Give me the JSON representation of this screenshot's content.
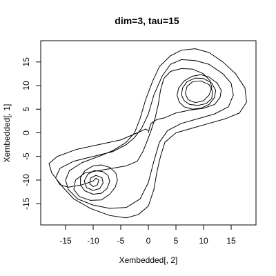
{
  "chart_data": {
    "type": "line",
    "title": "dim=3, tau=15",
    "xlabel": "Xembedded[, 2]",
    "ylabel": "Xembedded[, 1]",
    "xlim": [
      -19.5,
      19.5
    ],
    "ylim": [
      -19.5,
      19.5
    ],
    "x_ticks": [
      -15,
      -10,
      -5,
      0,
      5,
      10,
      15
    ],
    "y_ticks": [
      -15,
      -10,
      -5,
      0,
      5,
      10,
      15
    ],
    "x_tick_labels": [
      "-15",
      "-10",
      "-5",
      "0",
      "5",
      "10",
      "15"
    ],
    "y_tick_labels": [
      "-15",
      "-10",
      "-5",
      "0",
      "5",
      "10",
      "15"
    ],
    "grid": false,
    "line_color": "#000000",
    "series": [
      {
        "points": [
          [
            0.0,
            0.0
          ],
          [
            0.2,
            1.0
          ],
          [
            0.5,
            2.0
          ],
          [
            1.5,
            2.8
          ],
          [
            3.0,
            3.2
          ],
          [
            5.0,
            4.2
          ],
          [
            7.5,
            4.8
          ],
          [
            10.0,
            5.2
          ],
          [
            12.0,
            6.0
          ],
          [
            13.0,
            7.5
          ],
          [
            13.2,
            9.0
          ],
          [
            12.5,
            10.5
          ],
          [
            11.0,
            11.8
          ],
          [
            9.5,
            12.3
          ],
          [
            8.0,
            12.0
          ],
          [
            6.5,
            11.0
          ],
          [
            5.5,
            9.5
          ],
          [
            5.2,
            8.0
          ],
          [
            5.6,
            6.5
          ],
          [
            6.5,
            5.5
          ],
          [
            8.0,
            5.0
          ],
          [
            9.5,
            5.2
          ],
          [
            11.0,
            6.0
          ],
          [
            12.0,
            7.5
          ],
          [
            12.2,
            9.0
          ],
          [
            11.5,
            10.5
          ],
          [
            10.0,
            11.5
          ],
          [
            8.5,
            11.6
          ],
          [
            7.0,
            10.8
          ],
          [
            6.2,
            9.5
          ],
          [
            6.0,
            8.0
          ],
          [
            6.5,
            6.8
          ],
          [
            7.5,
            6.0
          ],
          [
            9.0,
            5.8
          ],
          [
            10.5,
            6.2
          ],
          [
            11.5,
            7.3
          ],
          [
            11.6,
            8.8
          ],
          [
            11.0,
            10.2
          ],
          [
            9.5,
            11.0
          ],
          [
            8.0,
            10.8
          ],
          [
            7.0,
            9.8
          ],
          [
            6.7,
            8.3
          ],
          [
            7.2,
            7.0
          ],
          [
            8.5,
            6.4
          ],
          [
            10.0,
            6.8
          ],
          [
            11.0,
            8.0
          ],
          [
            11.5,
            9.5
          ],
          [
            11.2,
            11.0
          ],
          [
            10.0,
            12.5
          ],
          [
            8.0,
            13.5
          ],
          [
            6.0,
            13.6
          ],
          [
            4.0,
            13.0
          ],
          [
            2.8,
            11.5
          ],
          [
            2.2,
            9.0
          ],
          [
            1.8,
            6.0
          ],
          [
            1.2,
            3.0
          ],
          [
            0.5,
            0.5
          ],
          [
            -0.3,
            -2.0
          ],
          [
            -1.0,
            -4.0
          ],
          [
            -2.0,
            -6.0
          ],
          [
            -4.0,
            -7.0
          ],
          [
            -6.5,
            -7.5
          ],
          [
            -9.0,
            -8.0
          ],
          [
            -11.5,
            -8.5
          ],
          [
            -13.2,
            -10.0
          ],
          [
            -13.5,
            -12.0
          ],
          [
            -12.5,
            -13.5
          ],
          [
            -10.5,
            -14.3
          ],
          [
            -8.5,
            -14.2
          ],
          [
            -7.0,
            -13.0
          ],
          [
            -6.0,
            -11.5
          ],
          [
            -5.6,
            -10.0
          ],
          [
            -5.9,
            -8.5
          ],
          [
            -7.0,
            -7.3
          ],
          [
            -8.5,
            -6.8
          ],
          [
            -10.0,
            -7.0
          ],
          [
            -11.5,
            -8.0
          ],
          [
            -12.3,
            -9.5
          ],
          [
            -12.3,
            -11.0
          ],
          [
            -11.5,
            -12.3
          ],
          [
            -10.0,
            -13.0
          ],
          [
            -8.5,
            -12.8
          ],
          [
            -7.5,
            -11.8
          ],
          [
            -7.0,
            -10.3
          ],
          [
            -7.3,
            -9.0
          ],
          [
            -8.3,
            -8.2
          ],
          [
            -9.8,
            -8.0
          ],
          [
            -11.0,
            -8.8
          ],
          [
            -11.6,
            -10.2
          ],
          [
            -11.2,
            -11.6
          ],
          [
            -10.0,
            -12.2
          ],
          [
            -8.8,
            -11.8
          ],
          [
            -8.2,
            -10.6
          ],
          [
            -8.4,
            -9.5
          ],
          [
            -9.5,
            -9.0
          ],
          [
            -10.5,
            -9.6
          ],
          [
            -10.6,
            -10.8
          ],
          [
            -10.0,
            -11.4
          ],
          [
            -9.2,
            -11.0
          ],
          [
            -9.0,
            -10.0
          ],
          [
            -9.5,
            -9.6
          ],
          [
            -10.0,
            -10.2
          ],
          [
            -12.0,
            -11.0
          ],
          [
            -14.5,
            -11.5
          ],
          [
            -16.0,
            -11.0
          ],
          [
            -16.8,
            -9.5
          ],
          [
            -16.0,
            -7.5
          ],
          [
            -13.5,
            -6.0
          ],
          [
            -10.0,
            -5.0
          ],
          [
            -6.5,
            -4.0
          ],
          [
            -4.0,
            -2.5
          ],
          [
            -2.5,
            -1.0
          ],
          [
            -1.2,
            1.0
          ],
          [
            0.0,
            4.0
          ],
          [
            1.0,
            8.0
          ],
          [
            2.5,
            12.0
          ],
          [
            4.0,
            14.5
          ],
          [
            6.0,
            15.5
          ],
          [
            8.5,
            15.3
          ],
          [
            11.0,
            14.5
          ],
          [
            13.5,
            12.5
          ],
          [
            15.0,
            10.5
          ],
          [
            15.4,
            8.0
          ],
          [
            14.5,
            5.5
          ],
          [
            12.0,
            4.0
          ],
          [
            9.0,
            3.0
          ],
          [
            6.0,
            2.0
          ],
          [
            3.5,
            0.5
          ],
          [
            2.0,
            -2.0
          ],
          [
            1.0,
            -6.0
          ],
          [
            0.0,
            -10.5
          ],
          [
            -1.5,
            -14.0
          ],
          [
            -4.0,
            -15.8
          ],
          [
            -7.0,
            -16.0
          ],
          [
            -10.0,
            -15.3
          ],
          [
            -12.8,
            -14.0
          ],
          [
            -14.5,
            -12.0
          ],
          [
            -15.0,
            -10.0
          ],
          [
            -14.3,
            -8.0
          ],
          [
            -12.0,
            -6.3
          ],
          [
            -9.0,
            -5.0
          ],
          [
            -6.5,
            -3.8
          ],
          [
            -4.0,
            -2.0
          ],
          [
            -2.5,
            0.0
          ],
          [
            -1.5,
            3.0
          ],
          [
            -0.5,
            7.0
          ],
          [
            0.8,
            11.0
          ],
          [
            2.0,
            14.0
          ],
          [
            4.0,
            16.3
          ],
          [
            6.0,
            17.5
          ],
          [
            8.5,
            17.8
          ],
          [
            11.0,
            17.0
          ],
          [
            13.5,
            15.0
          ],
          [
            15.8,
            12.5
          ],
          [
            17.5,
            9.5
          ],
          [
            17.8,
            6.5
          ],
          [
            16.5,
            4.2
          ],
          [
            14.0,
            3.0
          ],
          [
            11.0,
            2.0
          ],
          [
            8.0,
            1.0
          ],
          [
            5.0,
            0.0
          ],
          [
            3.0,
            -2.0
          ],
          [
            2.2,
            -5.0
          ],
          [
            1.6,
            -8.0
          ],
          [
            1.0,
            -12.0
          ],
          [
            0.0,
            -15.5
          ],
          [
            -1.8,
            -17.3
          ],
          [
            -4.0,
            -18.0
          ],
          [
            -7.0,
            -17.5
          ],
          [
            -10.5,
            -16.0
          ],
          [
            -13.5,
            -14.0
          ],
          [
            -15.5,
            -11.5
          ],
          [
            -17.5,
            -8.5
          ],
          [
            -18.0,
            -6.5
          ],
          [
            -16.5,
            -5.0
          ],
          [
            -13.0,
            -3.5
          ],
          [
            -9.0,
            -2.5
          ],
          [
            -5.0,
            -1.5
          ],
          [
            -2.0,
            0.0
          ],
          [
            -0.5,
            0.8
          ],
          [
            0.0,
            0.5
          ]
        ]
      }
    ]
  }
}
